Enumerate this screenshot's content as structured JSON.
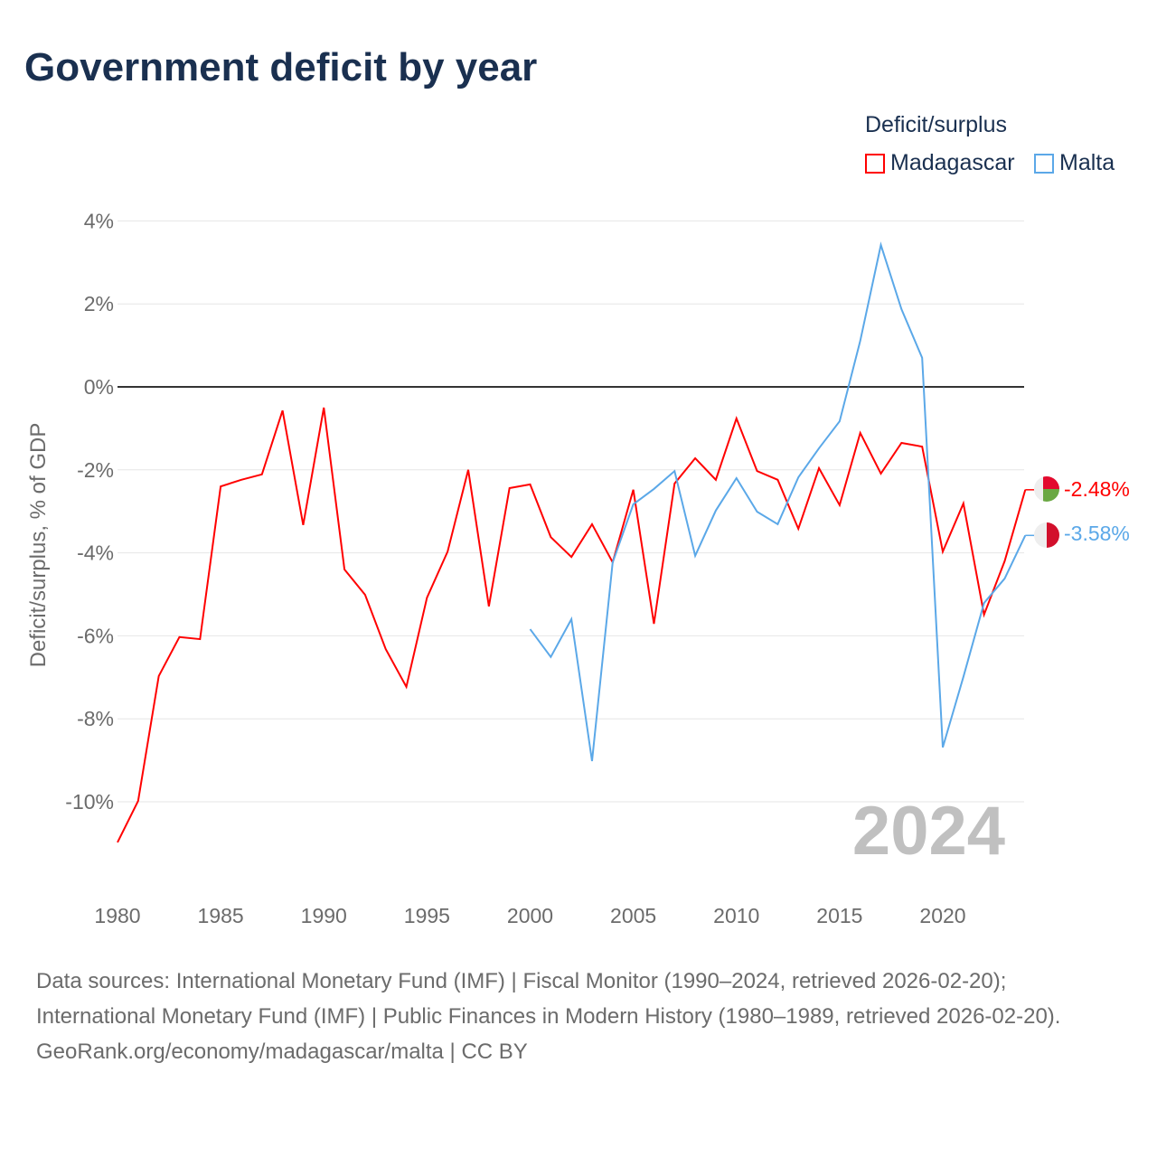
{
  "chart_data": {
    "type": "line",
    "title": "Government deficit by year",
    "ylabel": "Deficit/surplus, % of GDP",
    "xlabel": "",
    "ylim": [
      -11,
      4
    ],
    "xlim": [
      1980,
      2024
    ],
    "yticks": [
      4,
      2,
      0,
      -2,
      -4,
      -6,
      -8,
      -10
    ],
    "ytick_labels": [
      "4%",
      "2%",
      "0%",
      "-2%",
      "-4%",
      "-6%",
      "-8%",
      "-10%"
    ],
    "xticks": [
      1980,
      1985,
      1990,
      1995,
      2000,
      2005,
      2010,
      2015,
      2020
    ],
    "xtick_labels": [
      "1980",
      "1985",
      "1990",
      "1995",
      "2000",
      "2005",
      "2010",
      "2015",
      "2020"
    ],
    "grid": true,
    "legend_title": "Deficit/surplus",
    "legend_position": "top-right",
    "year_label": "2024",
    "series": [
      {
        "name": "Madagascar",
        "color": "#ff0000",
        "end_label": "-2.48%",
        "x": [
          1980,
          1981,
          1982,
          1983,
          1984,
          1985,
          1986,
          1987,
          1988,
          1989,
          1990,
          1991,
          1992,
          1993,
          1994,
          1995,
          1996,
          1997,
          1998,
          1999,
          2000,
          2001,
          2002,
          2003,
          2004,
          2005,
          2006,
          2007,
          2008,
          2009,
          2010,
          2011,
          2012,
          2013,
          2014,
          2015,
          2016,
          2017,
          2018,
          2019,
          2020,
          2021,
          2022,
          2023,
          2024
        ],
        "values": [
          -10.98,
          -9.98,
          -6.97,
          -6.03,
          -6.08,
          -2.4,
          -2.24,
          -2.11,
          -0.57,
          -3.33,
          -0.5,
          -4.4,
          -5.01,
          -6.32,
          -7.23,
          -5.08,
          -3.97,
          -2.0,
          -5.29,
          -2.44,
          -2.35,
          -3.62,
          -4.1,
          -3.31,
          -4.23,
          -2.48,
          -5.71,
          -2.33,
          -1.72,
          -2.24,
          -0.76,
          -2.03,
          -2.24,
          -3.42,
          -1.96,
          -2.85,
          -1.11,
          -2.09,
          -1.35,
          -1.44,
          -3.97,
          -2.81,
          -5.49,
          -4.2,
          -2.48
        ]
      },
      {
        "name": "Malta",
        "color": "#5ba8e8",
        "end_label": "-3.58%",
        "x": [
          2000,
          2001,
          2002,
          2003,
          2004,
          2005,
          2006,
          2007,
          2008,
          2009,
          2010,
          2011,
          2012,
          2013,
          2014,
          2015,
          2016,
          2017,
          2018,
          2019,
          2020,
          2021,
          2022,
          2023,
          2024
        ],
        "values": [
          -5.84,
          -6.51,
          -5.6,
          -9.02,
          -4.23,
          -2.83,
          -2.46,
          -2.03,
          -4.07,
          -2.98,
          -2.2,
          -3.01,
          -3.31,
          -2.18,
          -1.48,
          -0.83,
          1.11,
          3.42,
          1.87,
          0.7,
          -8.69,
          -6.99,
          -5.21,
          -4.62,
          -3.58
        ]
      }
    ]
  },
  "footer": {
    "sources": "Data sources: International Monetary Fund (IMF) | Fiscal Monitor (1990–2024, retrieved 2026-02-20); International Monetary Fund (IMF) | Public Finances in Modern History (1980–1989, retrieved 2026-02-20).",
    "credit": "GeoRank.org/economy/madagascar/malta | CC BY"
  }
}
